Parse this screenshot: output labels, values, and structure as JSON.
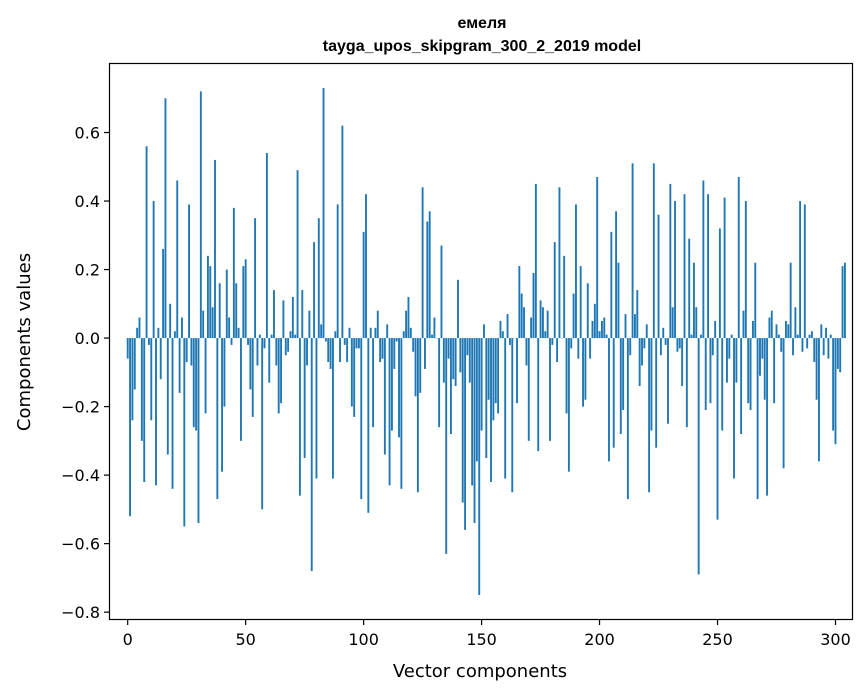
{
  "chart_data": {
    "type": "bar",
    "title_lines": [
      "емеля",
      "tayga_upos_skipgram_300_2_2019 model"
    ],
    "xlabel": "Vector components",
    "ylabel": "Components values",
    "xlim": [
      -7.5,
      307
    ],
    "ylim": [
      -0.82,
      0.8
    ],
    "xticks": [
      0,
      50,
      100,
      150,
      200,
      250,
      300
    ],
    "yticks": [
      -0.8,
      -0.6,
      -0.4,
      -0.2,
      0.0,
      0.2,
      0.4,
      0.6
    ],
    "ytick_labels": [
      "−0.8",
      "−0.6",
      "−0.4",
      "−0.2",
      "0.0",
      "0.2",
      "0.4",
      "0.6"
    ],
    "grid": false,
    "bar_color": "#1f77b4",
    "values": [
      -0.06,
      -0.52,
      -0.24,
      -0.15,
      0.03,
      0.06,
      -0.3,
      -0.42,
      0.56,
      -0.02,
      -0.24,
      0.4,
      -0.43,
      0.03,
      -0.12,
      0.26,
      0.7,
      -0.34,
      0.1,
      -0.44,
      0.02,
      0.46,
      -0.16,
      0.06,
      -0.55,
      -0.07,
      0.39,
      -0.08,
      -0.26,
      -0.27,
      -0.54,
      0.72,
      0.08,
      -0.22,
      0.24,
      0.21,
      0.09,
      0.52,
      -0.47,
      0.16,
      -0.39,
      -0.2,
      0.2,
      0.06,
      -0.02,
      0.38,
      0.16,
      0.03,
      -0.3,
      0.21,
      0.23,
      -0.02,
      -0.15,
      -0.23,
      0.35,
      -0.08,
      0.01,
      -0.5,
      -0.03,
      0.54,
      -0.13,
      0.01,
      0.14,
      -0.08,
      -0.22,
      -0.19,
      0.11,
      -0.05,
      -0.04,
      0.02,
      0.12,
      0.01,
      0.49,
      -0.46,
      0.14,
      -0.35,
      -0.08,
      0.08,
      -0.68,
      0.28,
      -0.41,
      0.35,
      0.04,
      0.73,
      -0.01,
      -0.07,
      -0.09,
      -0.41,
      0.02,
      0.39,
      -0.07,
      0.62,
      -0.02,
      -0.07,
      0.03,
      -0.2,
      -0.23,
      -0.03,
      -0.03,
      -0.47,
      0.31,
      0.42,
      -0.51,
      0.03,
      -0.26,
      0.03,
      0.08,
      -0.07,
      -0.06,
      -0.34,
      0.04,
      -0.43,
      -0.27,
      -0.09,
      -0.01,
      -0.29,
      -0.44,
      0.02,
      0.08,
      0.12,
      0.03,
      -0.04,
      -0.17,
      -0.45,
      -0.16,
      0.44,
      -0.09,
      0.34,
      0.37,
      0.01,
      0.06,
      0.0,
      -0.26,
      0.27,
      -0.13,
      -0.63,
      -0.06,
      -0.28,
      -0.12,
      -0.14,
      0.17,
      -0.1,
      -0.48,
      -0.56,
      -0.05,
      -0.13,
      -0.43,
      -0.54,
      -0.36,
      -0.75,
      -0.27,
      0.04,
      -0.35,
      -0.18,
      -0.42,
      -0.24,
      -0.19,
      -0.22,
      0.05,
      0.02,
      -0.41,
      0.07,
      -0.02,
      -0.45,
      0.0,
      -0.19,
      0.21,
      0.13,
      0.09,
      -0.08,
      -0.3,
      0.06,
      0.19,
      0.45,
      -0.33,
      0.11,
      0.09,
      0.02,
      0.08,
      -0.3,
      -0.02,
      0.28,
      -0.07,
      0.44,
      0.0,
      0.24,
      -0.22,
      -0.39,
      -0.03,
      0.13,
      0.39,
      -0.06,
      0.21,
      -0.2,
      -0.18,
      0.16,
      -0.06,
      0.05,
      0.1,
      0.47,
      0.02,
      0.05,
      0.06,
      0.01,
      -0.36,
      0.31,
      -0.32,
      0.37,
      0.22,
      -0.28,
      -0.21,
      0.07,
      -0.47,
      -0.05,
      0.51,
      0.07,
      0.14,
      -0.14,
      -0.08,
      -0.03,
      0.04,
      -0.45,
      -0.27,
      0.51,
      -0.32,
      0.36,
      -0.05,
      0.03,
      -0.02,
      -0.25,
      0.45,
      0.09,
      0.4,
      -0.04,
      -0.03,
      -0.14,
      0.42,
      -0.26,
      0.29,
      0.01,
      0.22,
      0.09,
      -0.69,
      0.01,
      0.46,
      -0.21,
      0.42,
      -0.19,
      -0.05,
      0.05,
      -0.53,
      0.32,
      -0.27,
      0.41,
      -0.13,
      -0.06,
      0.01,
      -0.41,
      -0.13,
      0.47,
      -0.28,
      0.08,
      0.4,
      -0.19,
      -0.21,
      0.05,
      0.22,
      -0.47,
      -0.11,
      -0.06,
      -0.18,
      -0.46,
      0.06,
      0.08,
      -0.19,
      0.04,
      0.01,
      -0.04,
      -0.38,
      0.05,
      0.04,
      0.22,
      -0.05,
      0.09,
      0.01,
      0.4,
      -0.04,
      0.39,
      -0.03,
      0.01,
      0.02,
      -0.07,
      -0.18,
      -0.36,
      0.04,
      -0.05,
      0.03,
      -0.06,
      0.01,
      -0.27,
      -0.31,
      -0.09,
      -0.1,
      0.21,
      0.22
    ]
  }
}
